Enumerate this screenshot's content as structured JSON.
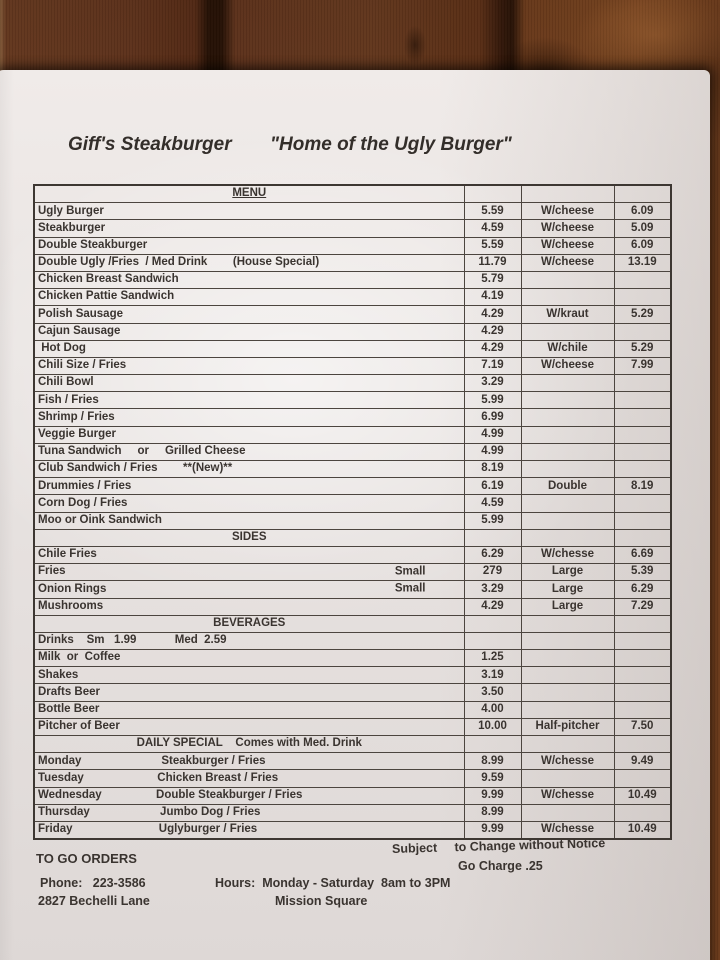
{
  "colors": {
    "paper": "#e8e3e1",
    "ink": "#3a3430",
    "wood": "#6d3a20",
    "table_border": "#4c453f"
  },
  "header": {
    "restaurant": "Giff's Steakburger",
    "tagline": "\"Home of the Ugly Burger\""
  },
  "menu": {
    "rows": [
      {
        "type": "section",
        "name": "MENU",
        "underline": true
      },
      {
        "type": "item",
        "name": "Ugly Burger",
        "price": "5.59",
        "option": "W/cheese",
        "option_price": "6.09"
      },
      {
        "type": "item",
        "name": "Steakburger",
        "price": "4.59",
        "option": "W/cheese",
        "option_price": "5.09"
      },
      {
        "type": "item",
        "name": "Double Steakburger",
        "price": "5.59",
        "option": "W/cheese",
        "option_price": "6.09"
      },
      {
        "type": "item",
        "name": "Double Ugly /Fries  / Med Drink        (House Special)",
        "price": "11.79",
        "option": "W/cheese",
        "option_price": "13.19"
      },
      {
        "type": "item",
        "name": "Chicken Breast Sandwich",
        "price": "5.79"
      },
      {
        "type": "item",
        "name": "Chicken Pattie Sandwich",
        "price": "4.19"
      },
      {
        "type": "item",
        "name": "Polish Sausage",
        "price": "4.29",
        "option": "W/kraut",
        "option_price": "5.29"
      },
      {
        "type": "item",
        "name": "Cajun Sausage",
        "price": "4.29"
      },
      {
        "type": "item",
        "name": " Hot Dog",
        "price": "4.29",
        "option": "W/chile",
        "option_price": "5.29"
      },
      {
        "type": "item",
        "name": "Chili Size / Fries",
        "price": "7.19",
        "option": "W/cheese",
        "option_price": "7.99"
      },
      {
        "type": "item",
        "name": "Chili Bowl",
        "price": "3.29"
      },
      {
        "type": "item",
        "name": "Fish / Fries",
        "price": "5.99"
      },
      {
        "type": "item",
        "name": "Shrimp / Fries",
        "price": "6.99"
      },
      {
        "type": "item",
        "name": "Veggie Burger",
        "price": "4.99"
      },
      {
        "type": "item",
        "name": "Tuna Sandwich     or     Grilled Cheese",
        "price": "4.99"
      },
      {
        "type": "item",
        "name": "Club Sandwich / Fries        **(New)**",
        "price": "8.19"
      },
      {
        "type": "item",
        "name": "Drummies / Fries",
        "price": "6.19",
        "option": "Double",
        "option_price": "8.19"
      },
      {
        "type": "item",
        "name": "Corn Dog / Fries",
        "price": "4.59"
      },
      {
        "type": "item",
        "name": "Moo or Oink Sandwich",
        "price": "5.99"
      },
      {
        "type": "section",
        "name": "SIDES"
      },
      {
        "type": "item",
        "name": "Chile Fries",
        "price": "6.29",
        "option": "W/chesse",
        "option_price": "6.69"
      },
      {
        "type": "item",
        "name": "Fries",
        "name_right": "Small",
        "price": "279",
        "option": "Large",
        "option_price": "5.39"
      },
      {
        "type": "item",
        "name": "Onion Rings",
        "name_right": "Small",
        "price": "3.29",
        "option": "Large",
        "option_price": "6.29"
      },
      {
        "type": "item",
        "name": "Mushrooms",
        "price": "4.29",
        "option": "Large",
        "option_price": "7.29"
      },
      {
        "type": "section",
        "name": "BEVERAGES"
      },
      {
        "type": "item",
        "name": "Drinks    Sm   1.99            Med  2.59"
      },
      {
        "type": "item",
        "name": "Milk  or  Coffee",
        "price": "1.25"
      },
      {
        "type": "item",
        "name": "Shakes",
        "price": "3.19"
      },
      {
        "type": "item",
        "name": "Drafts Beer",
        "price": "3.50"
      },
      {
        "type": "item",
        "name": "Bottle Beer",
        "price": "4.00"
      },
      {
        "type": "item",
        "name": "Pitcher of Beer",
        "price": "10.00",
        "option": "Half-pitcher",
        "option_price": "7.50"
      },
      {
        "type": "section",
        "name": "DAILY SPECIAL    Comes with Med. Drink"
      },
      {
        "type": "item",
        "name": "Monday                         Steakburger / Fries",
        "price": "8.99",
        "option": "W/chesse",
        "option_price": "9.49"
      },
      {
        "type": "item",
        "name": "Tuesday                       Chicken Breast / Fries",
        "price": "9.59"
      },
      {
        "type": "item",
        "name": "Wednesday                 Double Steakburger / Fries",
        "price": "9.99",
        "option": "W/chesse",
        "option_price": "10.49"
      },
      {
        "type": "item",
        "name": "Thursday                      Jumbo Dog / Fries",
        "price": "8.99"
      },
      {
        "type": "item",
        "name": "Friday                           Uglyburger / Fries",
        "price": "9.99",
        "option": "W/chesse",
        "option_price": "10.49"
      }
    ]
  },
  "footer": {
    "subject_notice": "Subject     to Change without Notice",
    "go_charge": "Go Charge .25",
    "to_go_orders": "TO GO ORDERS",
    "phone": "Phone:   223-3586",
    "hours": "Hours:  Monday - Saturday  8am to 3PM",
    "address": "2827 Bechelli Lane",
    "location": "Mission Square"
  }
}
